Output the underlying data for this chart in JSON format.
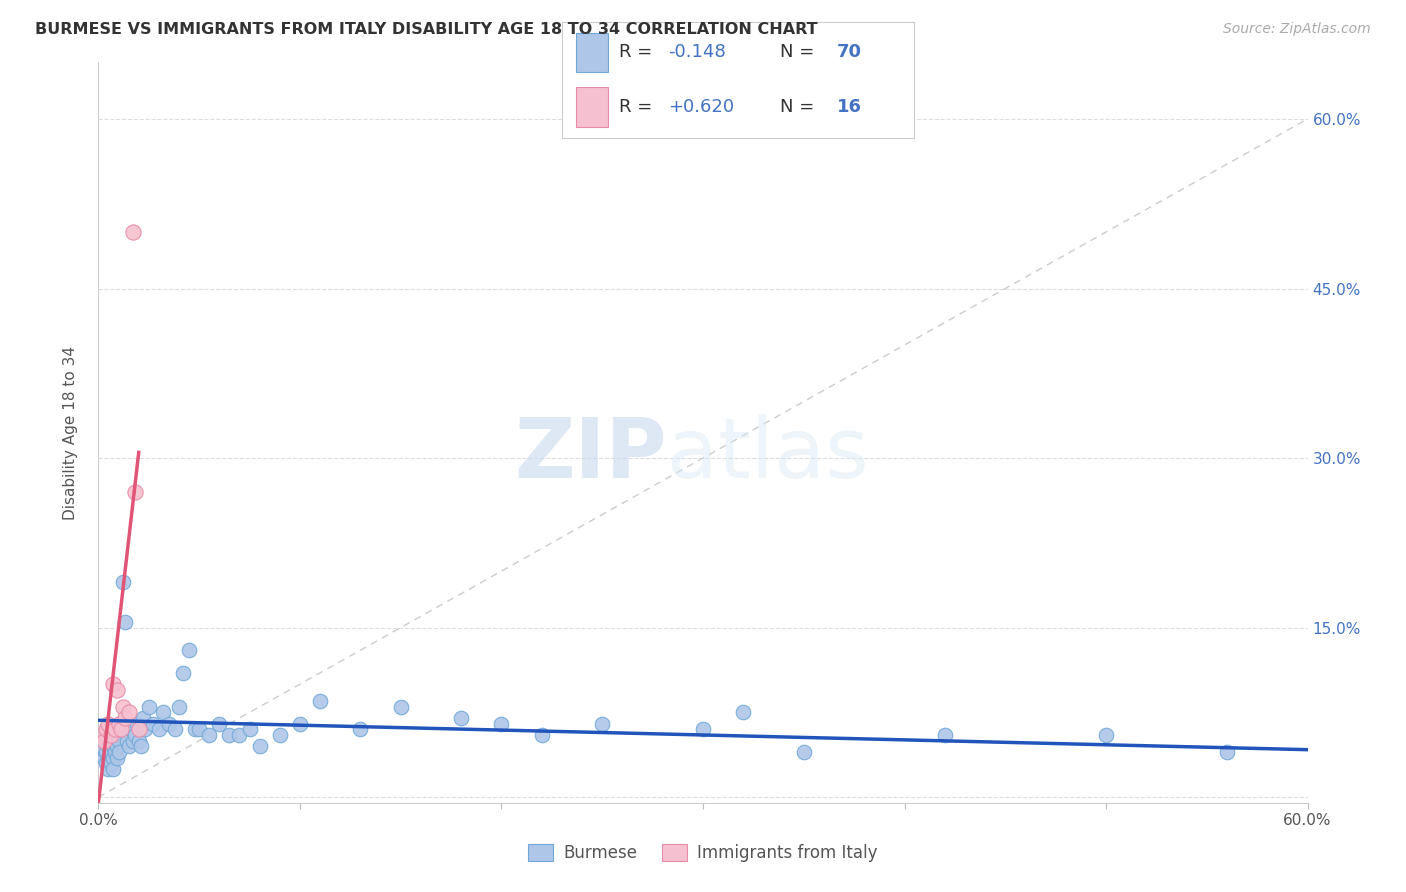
{
  "title": "BURMESE VS IMMIGRANTS FROM ITALY DISABILITY AGE 18 TO 34 CORRELATION CHART",
  "source": "Source: ZipAtlas.com",
  "ylabel": "Disability Age 18 to 34",
  "xlim": [
    0.0,
    0.6
  ],
  "ylim": [
    -0.005,
    0.65
  ],
  "xticks": [
    0.0,
    0.1,
    0.2,
    0.3,
    0.4,
    0.5,
    0.6
  ],
  "yticks": [
    0.0,
    0.15,
    0.3,
    0.45,
    0.6
  ],
  "ytick_right_labels": [
    "",
    "15.0%",
    "30.0%",
    "45.0%",
    "60.0%"
  ],
  "xtick_labels": [
    "0.0%",
    "",
    "",
    "",
    "",
    "",
    "60.0%"
  ],
  "burmese_color": "#aec6e8",
  "burmese_edge_color": "#6fa8d8",
  "italy_color": "#f5c0cf",
  "italy_edge_color": "#e88aa8",
  "blue_line_color": "#2255bb",
  "red_line_color": "#e05575",
  "diag_line_color": "#cccccc",
  "R_burmese": -0.148,
  "N_burmese": 70,
  "R_italy": 0.62,
  "N_italy": 16,
  "legend_burmese": "Burmese",
  "legend_italy": "Immigrants from Italy",
  "watermark_zip": "ZIP",
  "watermark_atlas": "atlas",
  "burmese_x": [
    0.002,
    0.003,
    0.003,
    0.004,
    0.004,
    0.004,
    0.005,
    0.005,
    0.005,
    0.005,
    0.006,
    0.006,
    0.006,
    0.007,
    0.007,
    0.007,
    0.007,
    0.008,
    0.008,
    0.008,
    0.009,
    0.009,
    0.009,
    0.01,
    0.01,
    0.011,
    0.012,
    0.013,
    0.014,
    0.015,
    0.016,
    0.017,
    0.018,
    0.019,
    0.02,
    0.021,
    0.022,
    0.023,
    0.025,
    0.027,
    0.03,
    0.032,
    0.035,
    0.038,
    0.04,
    0.042,
    0.045,
    0.048,
    0.05,
    0.055,
    0.06,
    0.065,
    0.07,
    0.075,
    0.08,
    0.09,
    0.1,
    0.11,
    0.13,
    0.15,
    0.18,
    0.2,
    0.22,
    0.25,
    0.3,
    0.32,
    0.35,
    0.42,
    0.5,
    0.56
  ],
  "burmese_y": [
    0.045,
    0.035,
    0.055,
    0.04,
    0.03,
    0.05,
    0.045,
    0.025,
    0.055,
    0.035,
    0.04,
    0.05,
    0.03,
    0.045,
    0.035,
    0.055,
    0.025,
    0.05,
    0.04,
    0.06,
    0.045,
    0.035,
    0.055,
    0.05,
    0.04,
    0.06,
    0.19,
    0.155,
    0.05,
    0.045,
    0.06,
    0.05,
    0.055,
    0.065,
    0.05,
    0.045,
    0.07,
    0.06,
    0.08,
    0.065,
    0.06,
    0.075,
    0.065,
    0.06,
    0.08,
    0.11,
    0.13,
    0.06,
    0.06,
    0.055,
    0.065,
    0.055,
    0.055,
    0.06,
    0.045,
    0.055,
    0.065,
    0.085,
    0.06,
    0.08,
    0.07,
    0.065,
    0.055,
    0.065,
    0.06,
    0.075,
    0.04,
    0.055,
    0.055,
    0.04
  ],
  "italy_x": [
    0.002,
    0.003,
    0.004,
    0.005,
    0.006,
    0.007,
    0.008,
    0.009,
    0.01,
    0.011,
    0.012,
    0.013,
    0.015,
    0.017,
    0.018,
    0.02
  ],
  "italy_y": [
    0.055,
    0.05,
    0.06,
    0.065,
    0.055,
    0.1,
    0.06,
    0.095,
    0.065,
    0.06,
    0.08,
    0.07,
    0.075,
    0.5,
    0.27,
    0.06
  ],
  "italy_line_x0": 0.0,
  "italy_line_x1": 0.02,
  "italy_line_y0": -0.005,
  "italy_line_y1": 0.305,
  "burmese_line_x0": 0.0,
  "burmese_line_x1": 0.6,
  "burmese_line_y0": 0.068,
  "burmese_line_y1": 0.042
}
